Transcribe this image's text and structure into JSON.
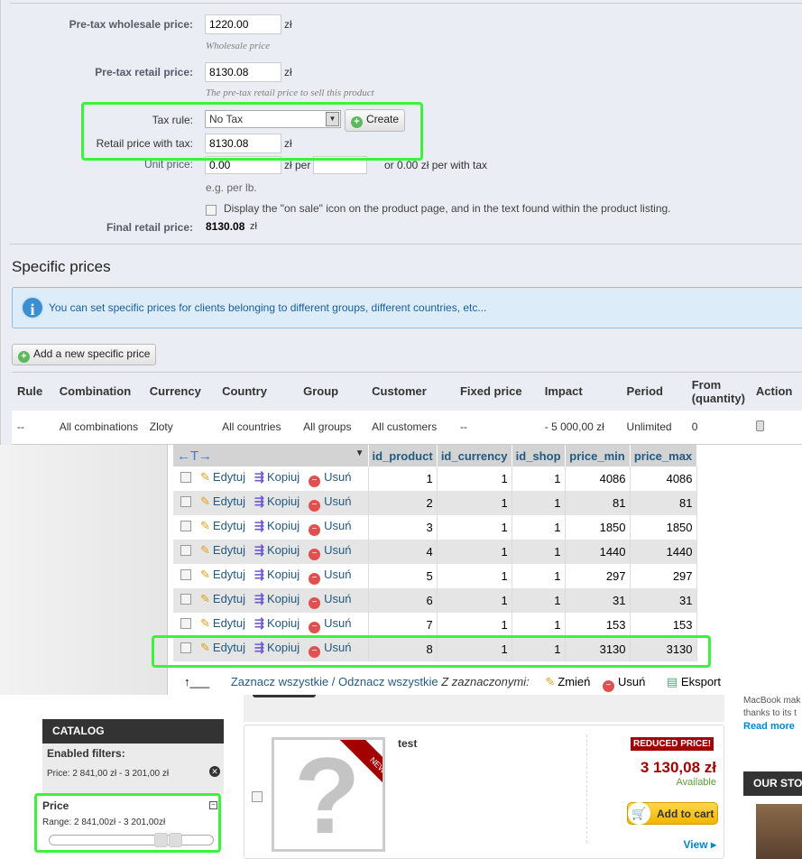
{
  "pricing": {
    "wholesale_label": "Pre-tax wholesale price:",
    "wholesale_value": "1220.00",
    "wholesale_hint": "Wholesale price",
    "retail_label": "Pre-tax retail price:",
    "retail_value": "8130.08",
    "retail_hint": "The pre-tax retail price to sell this product",
    "tax_rule_label": "Tax rule:",
    "tax_rule_value": "No Tax",
    "create_label": "Create",
    "retail_tax_label": "Retail price with tax:",
    "retail_tax_value": "8130.08",
    "unit_label": "Unit price:",
    "unit_value": "0.00",
    "unit_per": "zł per",
    "unit_per_value": "",
    "unit_with_tax": "or 0.00 zł per with tax",
    "unit_hint": "e.g. per lb.",
    "on_sale_label": "Display the \"on sale\" icon on the product page, and in the text found within the product listing.",
    "final_label": "Final retail price:",
    "final_value": "8130.08",
    "final_currency": "zł",
    "currency": "zł"
  },
  "specific_prices": {
    "title": "Specific prices",
    "info": "You can set specific prices for clients belonging to different groups, different countries, etc...",
    "add_label": "Add a new specific price",
    "headers": [
      "Rule",
      "Combination",
      "Currency",
      "Country",
      "Group",
      "Customer",
      "Fixed price",
      "Impact",
      "Period",
      "From (quantity)",
      "Action"
    ],
    "row": [
      "--",
      "All combinations",
      "Zloty",
      "All countries",
      "All groups",
      "All customers",
      "--",
      "- 5 000,00 zł",
      "Unlimited",
      "0"
    ]
  },
  "db_table": {
    "headers": [
      "id_product",
      "id_currency",
      "id_shop",
      "price_min",
      "price_max"
    ],
    "edit": "Edytuj",
    "copy": "Kopiuj",
    "delete": "Usuń",
    "rows": [
      [
        "1",
        "1",
        "1",
        "4086",
        "4086"
      ],
      [
        "2",
        "1",
        "1",
        "81",
        "81"
      ],
      [
        "3",
        "1",
        "1",
        "1850",
        "1850"
      ],
      [
        "4",
        "1",
        "1",
        "1440",
        "1440"
      ],
      [
        "5",
        "1",
        "1",
        "297",
        "297"
      ],
      [
        "6",
        "1",
        "1",
        "31",
        "31"
      ],
      [
        "7",
        "1",
        "1",
        "153",
        "153"
      ],
      [
        "8",
        "1",
        "1",
        "3130",
        "3130"
      ]
    ],
    "check_all": "Zaznacz wszystkie / Odznacz wszystkie",
    "with_selected": "Z zaznaczonymi:",
    "change": "Zmień",
    "remove": "Usuń",
    "export": "Eksport"
  },
  "shop": {
    "catalog": "CATALOG",
    "enabled_filters": "Enabled filters:",
    "filter_value": "Price: 2 841,00 zł - 3 201,00 zł",
    "price_title": "Price",
    "range": "Range: 2 841,00zł - 3 201,00zł",
    "slider_range_pct": [
      68,
      73
    ],
    "product_name": "test",
    "badge_new": "NEW",
    "reduced": "REDUCED PRICE!",
    "price": "3 130,08 zł",
    "availability": "Available",
    "add_to_cart": "Add to cart",
    "view": "View",
    "side_text_1": "MacBook mak",
    "side_text_2": "thanks to its t",
    "read_more": "Read more",
    "our_stores": "OUR STO"
  },
  "colors": {
    "highlight": "#3df13d",
    "price_red": "#a30000",
    "link_blue": "#0088cc"
  }
}
